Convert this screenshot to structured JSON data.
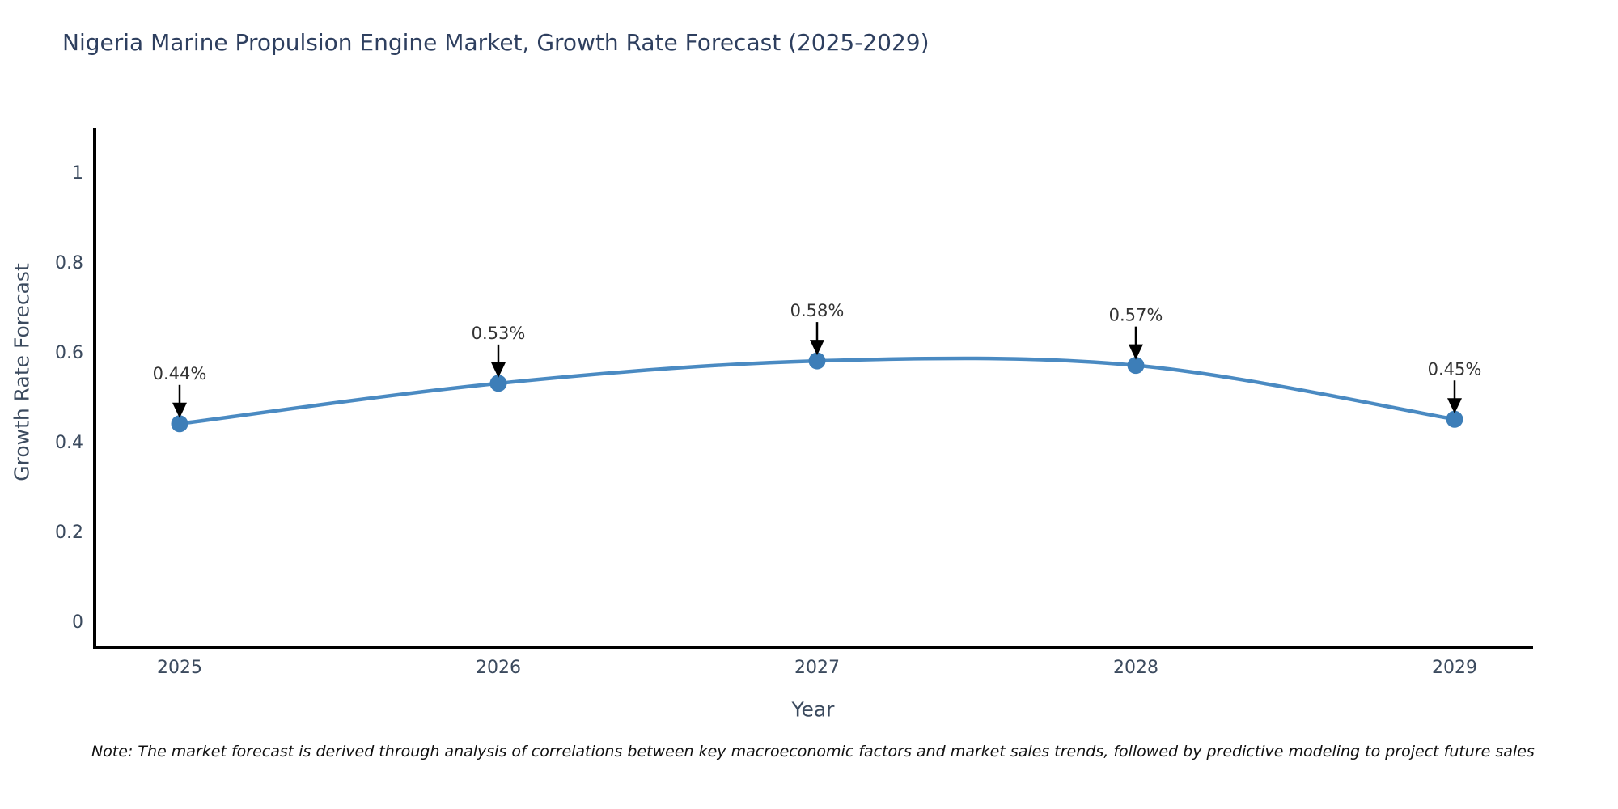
{
  "title": "Nigeria Marine Propulsion Engine Market, Growth Rate Forecast (2025-2029)",
  "note": "Note: The market forecast is derived through analysis of correlations between key macroeconomic factors and market sales trends, followed by predictive modeling to project future sales",
  "chart_data": {
    "type": "line",
    "title": "Nigeria Marine Propulsion Engine Market, Growth Rate Forecast (2025-2029)",
    "x": [
      "2025",
      "2026",
      "2027",
      "2028",
      "2029"
    ],
    "series": [
      {
        "name": "Growth Rate Forecast",
        "values": [
          0.44,
          0.53,
          0.58,
          0.57,
          0.45
        ],
        "point_labels": [
          "0.44%",
          "0.53%",
          "0.58%",
          "0.57%",
          "0.45%"
        ]
      }
    ],
    "xlabel": "Year",
    "ylabel": "Growth Rate Forecast",
    "yticks": [
      0,
      0.2,
      0.4,
      0.6,
      0.8,
      1
    ],
    "ytick_labels": [
      "0",
      "0.2",
      "0.4",
      "0.6",
      "0.8",
      "1"
    ],
    "ylim": [
      -0.058,
      1.1
    ],
    "grid": false,
    "legend_position": "none",
    "line_color": "#4a8ac2",
    "marker_color": "#3d7eb8",
    "axis_color": "#000000",
    "tick_label_color": "#3b4a5e",
    "annotation_text_color": "#333333",
    "annotation_arrow_color": "#000000"
  }
}
